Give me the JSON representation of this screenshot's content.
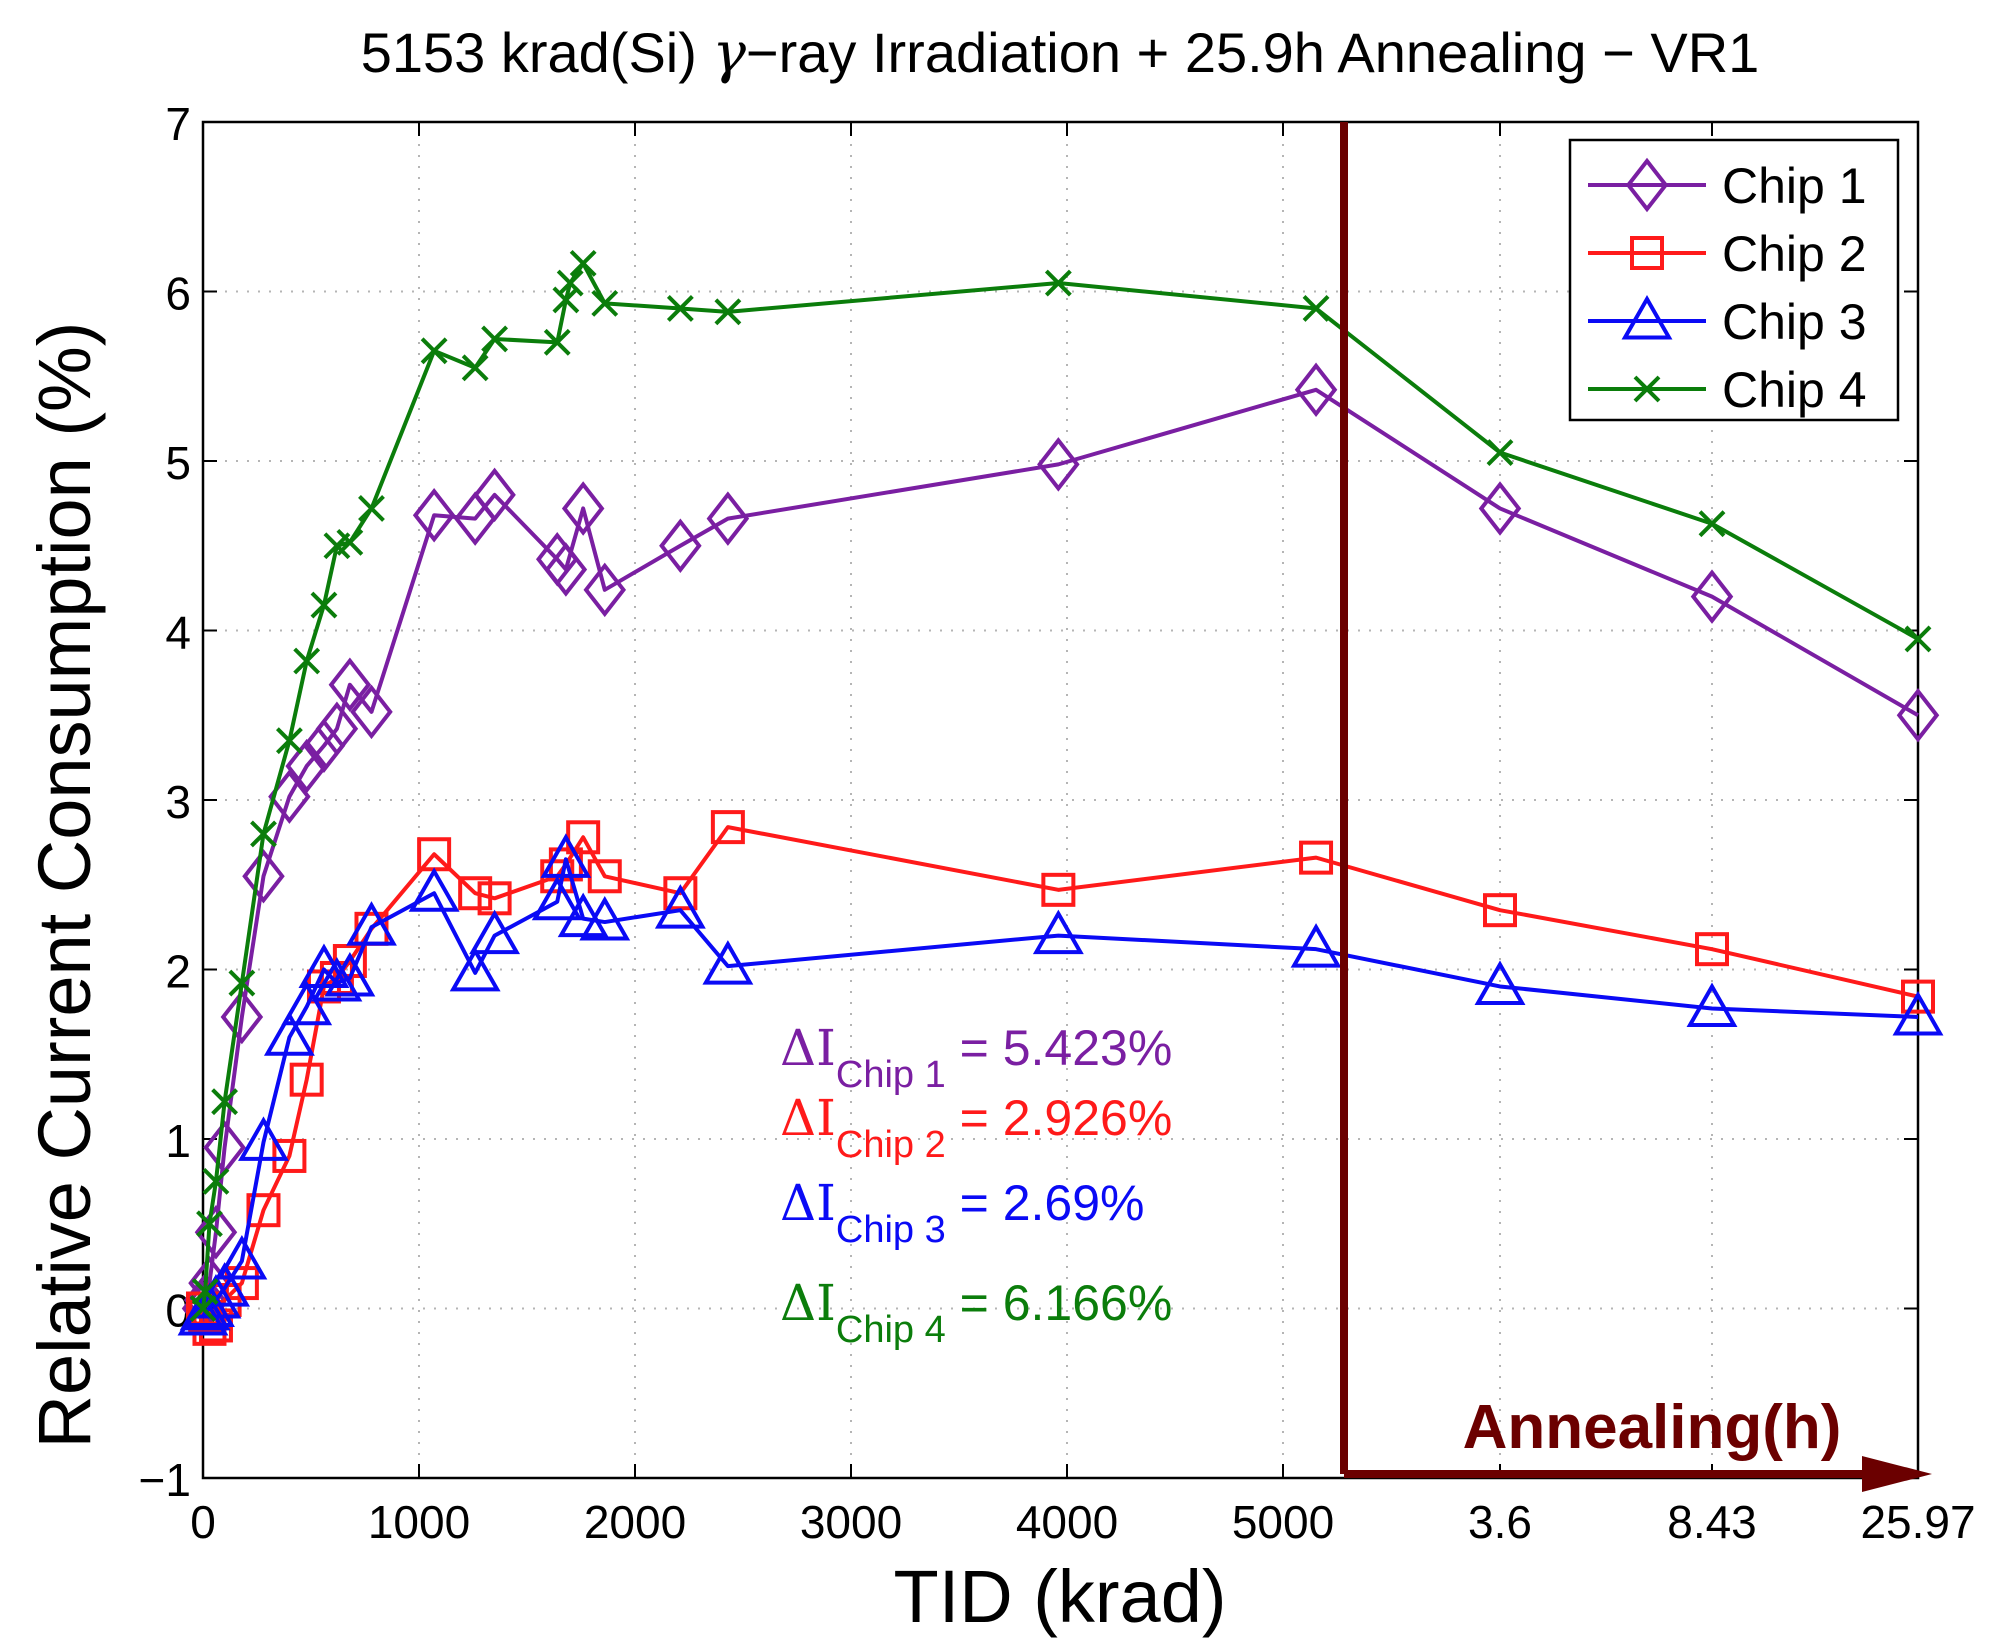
{
  "chart_data": {
    "type": "line",
    "title_prefix": "5153 krad(Si) ",
    "title_gamma": "γ",
    "title_suffix": "−ray Irradiation + 25.9h Annealing − VR1",
    "xlabel": "TID (krad)",
    "ylabel": "Relative Current Consumption (%)",
    "ylim": [
      -1,
      7
    ],
    "xlim": [
      0,
      5153
    ],
    "y_ticks": [
      "−1",
      "0",
      "1",
      "2",
      "3",
      "4",
      "5",
      "6",
      "7"
    ],
    "x_ticks": [
      {
        "v": 0,
        "label": "0"
      },
      {
        "v": 1000,
        "label": "1000"
      },
      {
        "v": 2000,
        "label": "2000"
      },
      {
        "v": 3000,
        "label": "3000"
      },
      {
        "v": 4000,
        "label": "4000"
      },
      {
        "v": 5000,
        "label": "5000"
      }
    ],
    "annealing_ticks": [
      {
        "h": 3.6,
        "label": "3.6"
      },
      {
        "h": 8.43,
        "label": "8.43"
      },
      {
        "h": 25.97,
        "label": "25.97"
      }
    ],
    "annealing_label": "Annealing(h)",
    "annealing_color": "#6b0000",
    "grid": true,
    "legend_position": "top-right",
    "series": [
      {
        "name": "Chip 1",
        "color": "#7a1fa2",
        "marker": "diamond",
        "tid": [
          0,
          10,
          30,
          60,
          100,
          180,
          280,
          400,
          480,
          560,
          620,
          680,
          780,
          1070,
          1260,
          1350,
          1640,
          1680,
          1760,
          1860,
          2210,
          2430,
          3960,
          5153
        ],
        "values": [
          0.0,
          0.05,
          0.15,
          0.45,
          0.95,
          1.72,
          2.55,
          3.02,
          3.2,
          3.32,
          3.42,
          3.68,
          3.52,
          4.68,
          4.66,
          4.8,
          4.42,
          4.36,
          4.72,
          4.24,
          4.5,
          4.66,
          4.98,
          5.42
        ],
        "anneal": [
          4.72,
          4.2,
          3.5
        ]
      },
      {
        "name": "Chip 2",
        "color": "#ff1a1a",
        "marker": "square",
        "tid": [
          0,
          10,
          30,
          60,
          100,
          180,
          280,
          400,
          480,
          560,
          620,
          680,
          780,
          1070,
          1260,
          1350,
          1640,
          1680,
          1760,
          1860,
          2210,
          2430,
          3960,
          5153
        ],
        "values": [
          0.0,
          -0.05,
          -0.12,
          -0.1,
          0.05,
          0.15,
          0.58,
          0.9,
          1.35,
          1.9,
          1.95,
          2.05,
          2.24,
          2.68,
          2.45,
          2.42,
          2.55,
          2.62,
          2.78,
          2.55,
          2.45,
          2.84,
          2.47,
          2.66
        ],
        "anneal": [
          2.35,
          2.12,
          1.84
        ]
      },
      {
        "name": "Chip 3",
        "color": "#0a0af5",
        "marker": "triangle",
        "tid": [
          0,
          10,
          30,
          60,
          100,
          180,
          280,
          400,
          480,
          560,
          620,
          680,
          780,
          1070,
          1260,
          1350,
          1640,
          1680,
          1760,
          1860,
          2210,
          2430,
          3960,
          5153
        ],
        "values": [
          -0.05,
          -0.02,
          0.0,
          0.05,
          0.12,
          0.28,
          0.98,
          1.6,
          1.78,
          2.0,
          1.92,
          1.95,
          2.25,
          2.45,
          1.98,
          2.2,
          2.4,
          2.65,
          2.3,
          2.28,
          2.35,
          2.02,
          2.2,
          2.12
        ],
        "anneal": [
          1.9,
          1.77,
          1.72
        ]
      },
      {
        "name": "Chip 4",
        "color": "#0b7d0b",
        "marker": "x",
        "tid": [
          0,
          10,
          30,
          60,
          100,
          180,
          280,
          400,
          480,
          560,
          620,
          680,
          780,
          1070,
          1260,
          1350,
          1640,
          1680,
          1700,
          1760,
          1860,
          2210,
          2430,
          3960,
          5153
        ],
        "values": [
          0.0,
          0.1,
          0.5,
          0.75,
          1.22,
          1.92,
          2.8,
          3.35,
          3.82,
          4.15,
          4.5,
          4.52,
          4.72,
          5.65,
          5.55,
          5.72,
          5.7,
          5.95,
          6.05,
          6.166,
          5.93,
          5.9,
          5.88,
          6.05,
          5.9
        ],
        "anneal": [
          5.05,
          4.63,
          3.95
        ]
      }
    ],
    "annotations": [
      {
        "delta": "Δ",
        "I": "I",
        "sub": "Chip 1",
        "eq": " = 5.423%",
        "color": "#7a1fa2"
      },
      {
        "delta": "Δ",
        "I": "I",
        "sub": "Chip 2",
        "eq": " = 2.926%",
        "color": "#ff1a1a"
      },
      {
        "delta": "Δ",
        "I": "I",
        "sub": "Chip 3",
        "eq": " = 2.69%",
        "color": "#0a0af5"
      },
      {
        "delta": "Δ",
        "I": "I",
        "sub": "Chip 4",
        "eq": " = 6.166%",
        "color": "#0b7d0b"
      }
    ]
  }
}
